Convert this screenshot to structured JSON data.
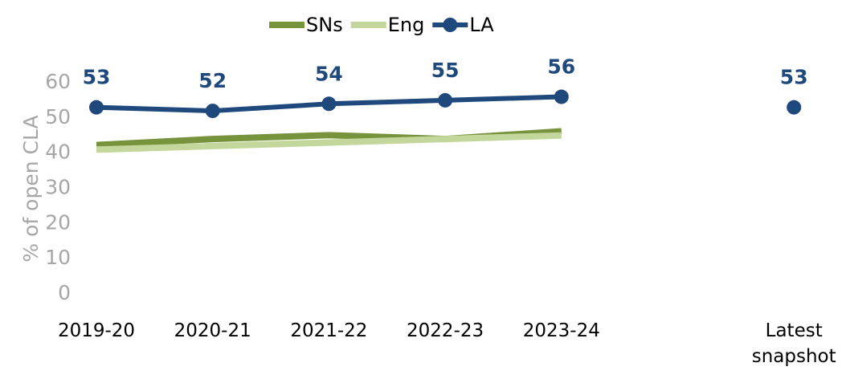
{
  "chart_data": {
    "type": "line",
    "y_label": "% of open CLA",
    "categories": [
      "2019-20",
      "2020-21",
      "2021-22",
      "2022-23",
      "2023-24",
      null,
      "Latest snapshot"
    ],
    "series": [
      {
        "name": "SNs",
        "color": "#77933c",
        "values": [
          42.3,
          44,
          45.1,
          44,
          46.2,
          null,
          null
        ]
      },
      {
        "name": "Eng",
        "color": "#c3d69b",
        "values": [
          41,
          42,
          43,
          44,
          45,
          null,
          null
        ]
      },
      {
        "name": "LA",
        "color": "#1f497d",
        "values": [
          53,
          52,
          54,
          55,
          56,
          null,
          53
        ],
        "markers": true,
        "data_labels": true
      }
    ],
    "ylim": [
      0,
      60
    ],
    "yticks": [
      0,
      10,
      20,
      30,
      40,
      50,
      60
    ],
    "grid": false,
    "legend": "top"
  }
}
